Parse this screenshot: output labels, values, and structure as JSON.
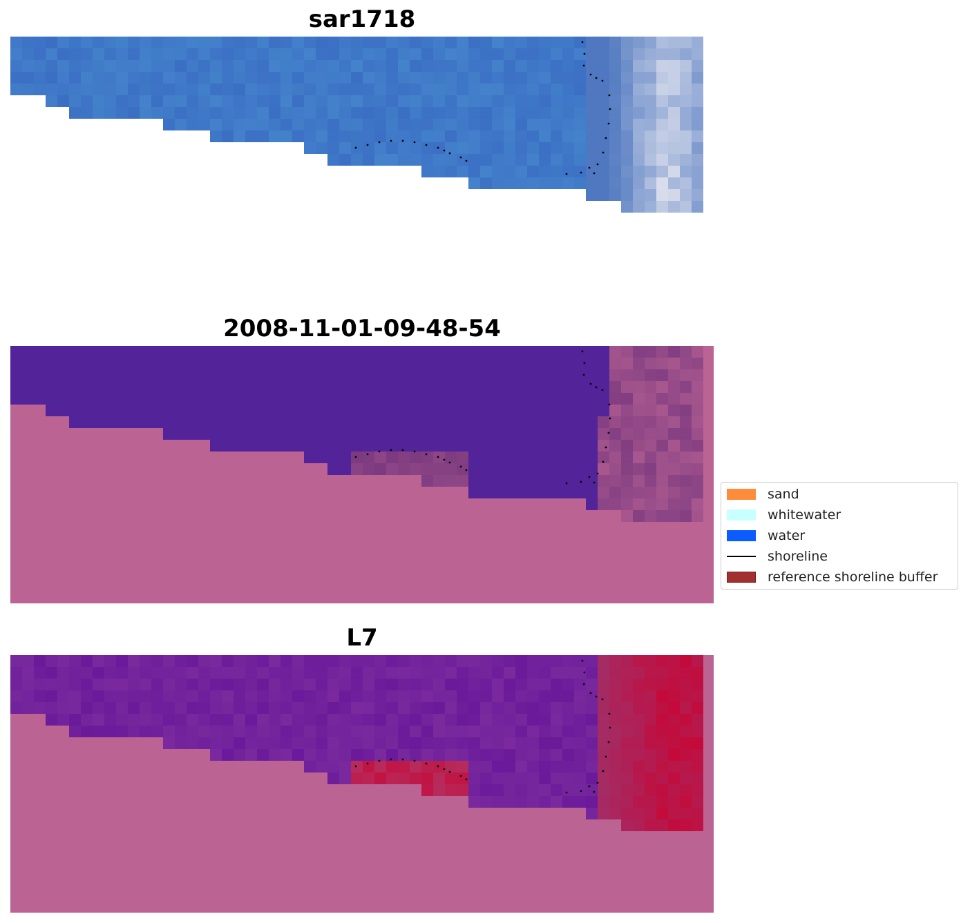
{
  "panels": [
    {
      "title": "sar1718"
    },
    {
      "title": "2008-11-01-09-48-54"
    },
    {
      "title": "L7"
    }
  ],
  "legend": {
    "items": [
      {
        "label": "sand",
        "kind": "patch",
        "color": "#ff8c3a",
        "edge": "#ff8c3a"
      },
      {
        "label": "whitewater",
        "kind": "patch",
        "color": "#c8ffff",
        "edge": "#c8ffff"
      },
      {
        "label": "water",
        "kind": "patch",
        "color": "#0a5cff",
        "edge": "#0a5cff"
      },
      {
        "label": "shoreline",
        "kind": "line",
        "color": "#000000"
      },
      {
        "label": "reference shoreline buffer",
        "kind": "patch",
        "color": "#a33030",
        "edge": "#7a1d1d"
      }
    ]
  },
  "colors": {
    "rgb_water": "#3b6fc4",
    "rgb_surf": "#e8e8f0",
    "class_water": "#532399",
    "class_land": "#bb6494",
    "class_buffer_dark": "#7c3a80",
    "index_water": "#6a1a9a",
    "index_high": "#c40a3a",
    "index_land": "#bb6494"
  }
}
